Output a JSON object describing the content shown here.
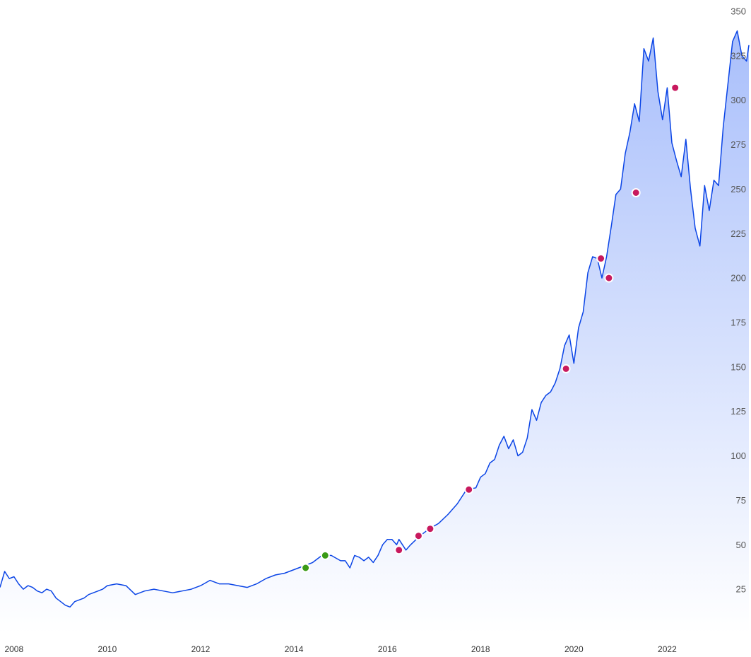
{
  "chart_data": {
    "type": "area",
    "title": "",
    "xlabel": "",
    "ylabel": "",
    "xlim": [
      2007.7,
      2023.75
    ],
    "ylim": [
      0,
      350
    ],
    "y_ticks": [
      25,
      50,
      75,
      100,
      125,
      150,
      175,
      200,
      225,
      250,
      275,
      300,
      325,
      350
    ],
    "x_ticks": [
      {
        "value": 2008,
        "label": "2008"
      },
      {
        "value": 2010,
        "label": "2010"
      },
      {
        "value": 2012,
        "label": "2012"
      },
      {
        "value": 2014,
        "label": "2014"
      },
      {
        "value": 2016,
        "label": "2016"
      },
      {
        "value": 2018,
        "label": "2018"
      },
      {
        "value": 2020,
        "label": "2020"
      },
      {
        "value": 2022,
        "label": "2022"
      }
    ],
    "grid": false,
    "colors": {
      "line": "#0b45e6",
      "fill_top": "#a9bffb",
      "fill_bottom": "#ffffff",
      "marker_red": "#c8195e",
      "marker_green": "#3a9a16"
    },
    "series": [
      {
        "x": [
          2007.7,
          2007.8,
          2007.9,
          2008.0,
          2008.1,
          2008.2,
          2008.3,
          2008.4,
          2008.5,
          2008.6,
          2008.7,
          2008.8,
          2008.9,
          2009.0,
          2009.1,
          2009.2,
          2009.3,
          2009.4,
          2009.5,
          2009.6,
          2009.7,
          2009.8,
          2009.9,
          2010.0,
          2010.2,
          2010.4,
          2010.6,
          2010.8,
          2011.0,
          2011.2,
          2011.4,
          2011.6,
          2011.8,
          2012.0,
          2012.2,
          2012.4,
          2012.6,
          2012.8,
          2013.0,
          2013.2,
          2013.4,
          2013.6,
          2013.8,
          2014.0,
          2014.2,
          2014.4,
          2014.6,
          2014.8,
          2015.0,
          2015.1,
          2015.2,
          2015.3,
          2015.4,
          2015.5,
          2015.6,
          2015.7,
          2015.8,
          2015.9,
          2016.0,
          2016.1,
          2016.2,
          2016.25,
          2016.4,
          2016.5,
          2016.7,
          2016.9,
          2017.1,
          2017.3,
          2017.5,
          2017.7,
          2017.9,
          2018.0,
          2018.1,
          2018.2,
          2018.3,
          2018.4,
          2018.5,
          2018.6,
          2018.7,
          2018.8,
          2018.9,
          2019.0,
          2019.1,
          2019.2,
          2019.3,
          2019.4,
          2019.5,
          2019.6,
          2019.7,
          2019.8,
          2019.9,
          2020.0,
          2020.1,
          2020.2,
          2020.3,
          2020.4,
          2020.5,
          2020.6,
          2020.7,
          2020.8,
          2020.9,
          2021.0,
          2021.1,
          2021.2,
          2021.3,
          2021.4,
          2021.5,
          2021.6,
          2021.7,
          2021.8,
          2021.9,
          2022.0,
          2022.1,
          2022.2,
          2022.3,
          2022.4,
          2022.5,
          2022.6,
          2022.7,
          2022.8,
          2022.9,
          2023.0,
          2023.1,
          2023.2,
          2023.3,
          2023.4,
          2023.5,
          2023.6,
          2023.7,
          2023.75
        ],
        "y": [
          26,
          35,
          31,
          32,
          28,
          25,
          27,
          26,
          24,
          23,
          25,
          24,
          20,
          18,
          16,
          15,
          18,
          19,
          20,
          22,
          23,
          24,
          25,
          27,
          28,
          27,
          22,
          24,
          25,
          24,
          23,
          24,
          25,
          27,
          30,
          28,
          28,
          27,
          26,
          28,
          31,
          33,
          34,
          36,
          38,
          40,
          44,
          44,
          41,
          41,
          37,
          44,
          43,
          41,
          43,
          40,
          44,
          50,
          53,
          53,
          50,
          53,
          47,
          50,
          55,
          59,
          62,
          67,
          73,
          81,
          82,
          88,
          90,
          96,
          98,
          106,
          111,
          104,
          109,
          100,
          102,
          110,
          126,
          120,
          130,
          134,
          136,
          141,
          149,
          162,
          168,
          152,
          172,
          181,
          203,
          212,
          211,
          200,
          212,
          229,
          247,
          250,
          270,
          282,
          298,
          288,
          329,
          322,
          335,
          305,
          289,
          307,
          276,
          266,
          257,
          278,
          250,
          228,
          218,
          252,
          238,
          255,
          252,
          285,
          309,
          333,
          339,
          325,
          322,
          331
        ]
      }
    ],
    "markers": [
      {
        "x": 2014.25,
        "y": 37,
        "kind": "green"
      },
      {
        "x": 2014.67,
        "y": 44,
        "kind": "green"
      },
      {
        "x": 2016.25,
        "y": 47,
        "kind": "red"
      },
      {
        "x": 2016.67,
        "y": 55,
        "kind": "red"
      },
      {
        "x": 2016.92,
        "y": 59,
        "kind": "red"
      },
      {
        "x": 2017.75,
        "y": 81,
        "kind": "red"
      },
      {
        "x": 2019.83,
        "y": 149,
        "kind": "red"
      },
      {
        "x": 2020.58,
        "y": 211,
        "kind": "red"
      },
      {
        "x": 2020.75,
        "y": 200,
        "kind": "red"
      },
      {
        "x": 2021.33,
        "y": 248,
        "kind": "red"
      },
      {
        "x": 2022.17,
        "y": 307,
        "kind": "red"
      }
    ]
  }
}
